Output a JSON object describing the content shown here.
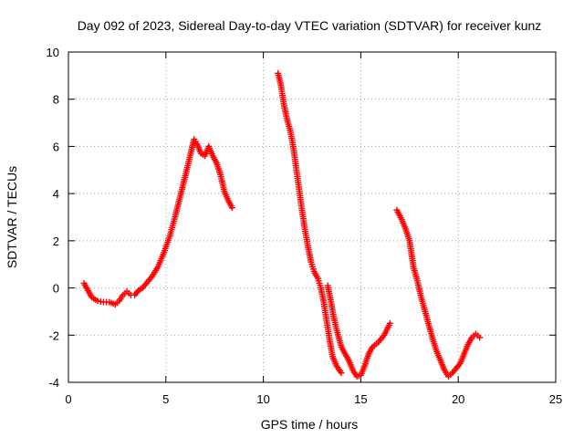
{
  "chart_data": {
    "type": "scatter",
    "title": "Day 092 of 2023, Sidereal Day-to-day VTEC variation (SDTVAR) for receiver kunz",
    "xlabel": "GPS time / hours",
    "ylabel": "SDTVAR / TECUs",
    "xlim": [
      0,
      25
    ],
    "ylim": [
      -4,
      10
    ],
    "xticks": [
      0,
      5,
      10,
      15,
      20,
      25
    ],
    "yticks": [
      -4,
      -2,
      0,
      2,
      4,
      6,
      8,
      10
    ],
    "grid": true,
    "marker": "+",
    "color": "#ff0000",
    "series": [
      {
        "name": "SDTVAR",
        "segments": [
          [
            [
              0.8,
              0.2
            ],
            [
              1.0,
              -0.1
            ],
            [
              1.2,
              -0.4
            ],
            [
              1.5,
              -0.55
            ],
            [
              1.8,
              -0.6
            ],
            [
              2.1,
              -0.6
            ],
            [
              2.4,
              -0.7
            ],
            [
              2.6,
              -0.55
            ],
            [
              2.8,
              -0.3
            ],
            [
              3.0,
              -0.15
            ],
            [
              3.2,
              -0.3
            ],
            [
              3.4,
              -0.3
            ],
            [
              3.6,
              -0.1
            ],
            [
              3.8,
              0.0
            ],
            [
              4.0,
              0.2
            ],
            [
              4.3,
              0.5
            ],
            [
              4.6,
              0.9
            ],
            [
              4.9,
              1.5
            ],
            [
              5.2,
              2.2
            ],
            [
              5.5,
              3.1
            ],
            [
              5.8,
              4.1
            ],
            [
              6.1,
              5.1
            ],
            [
              6.3,
              5.8
            ],
            [
              6.45,
              6.3
            ],
            [
              6.6,
              6.1
            ],
            [
              6.8,
              5.7
            ],
            [
              7.0,
              5.6
            ],
            [
              7.2,
              6.0
            ],
            [
              7.4,
              5.6
            ],
            [
              7.6,
              5.3
            ],
            [
              7.8,
              4.8
            ],
            [
              8.0,
              4.1
            ],
            [
              8.2,
              3.7
            ],
            [
              8.4,
              3.4
            ]
          ],
          [
            [
              10.75,
              9.1
            ],
            [
              10.9,
              8.6
            ],
            [
              11.05,
              7.8
            ],
            [
              11.2,
              7.2
            ],
            [
              11.4,
              6.6
            ],
            [
              11.55,
              5.9
            ],
            [
              11.7,
              5.0
            ],
            [
              11.85,
              4.1
            ],
            [
              12.0,
              3.2
            ],
            [
              12.15,
              2.4
            ],
            [
              12.3,
              1.7
            ],
            [
              12.45,
              1.1
            ],
            [
              12.6,
              0.7
            ],
            [
              12.8,
              0.4
            ],
            [
              12.95,
              0.0
            ],
            [
              13.1,
              -0.6
            ],
            [
              13.25,
              -1.4
            ],
            [
              13.4,
              -2.2
            ],
            [
              13.55,
              -2.9
            ],
            [
              13.75,
              -3.3
            ],
            [
              14.0,
              -3.6
            ]
          ],
          [
            [
              13.3,
              0.1
            ],
            [
              13.45,
              -0.5
            ],
            [
              13.6,
              -1.2
            ],
            [
              13.8,
              -1.9
            ],
            [
              14.0,
              -2.5
            ],
            [
              14.2,
              -2.8
            ],
            [
              14.4,
              -3.1
            ],
            [
              14.6,
              -3.5
            ],
            [
              14.8,
              -3.75
            ],
            [
              15.0,
              -3.7
            ],
            [
              15.2,
              -3.3
            ],
            [
              15.4,
              -2.8
            ],
            [
              15.6,
              -2.5
            ],
            [
              15.9,
              -2.3
            ],
            [
              16.2,
              -2.0
            ],
            [
              16.5,
              -1.5
            ]
          ],
          [
            [
              16.85,
              3.3
            ],
            [
              17.1,
              2.9
            ],
            [
              17.3,
              2.5
            ],
            [
              17.5,
              2.0
            ],
            [
              17.7,
              0.9
            ],
            [
              17.9,
              0.3
            ],
            [
              18.1,
              -0.4
            ],
            [
              18.3,
              -1.0
            ],
            [
              18.5,
              -1.6
            ],
            [
              18.7,
              -2.2
            ],
            [
              18.9,
              -2.7
            ],
            [
              19.1,
              -3.1
            ],
            [
              19.3,
              -3.5
            ],
            [
              19.5,
              -3.75
            ],
            [
              19.7,
              -3.6
            ],
            [
              19.9,
              -3.4
            ],
            [
              20.1,
              -3.2
            ],
            [
              20.3,
              -2.8
            ],
            [
              20.5,
              -2.4
            ],
            [
              20.7,
              -2.1
            ],
            [
              20.9,
              -1.95
            ],
            [
              21.1,
              -2.1
            ]
          ]
        ]
      }
    ]
  }
}
